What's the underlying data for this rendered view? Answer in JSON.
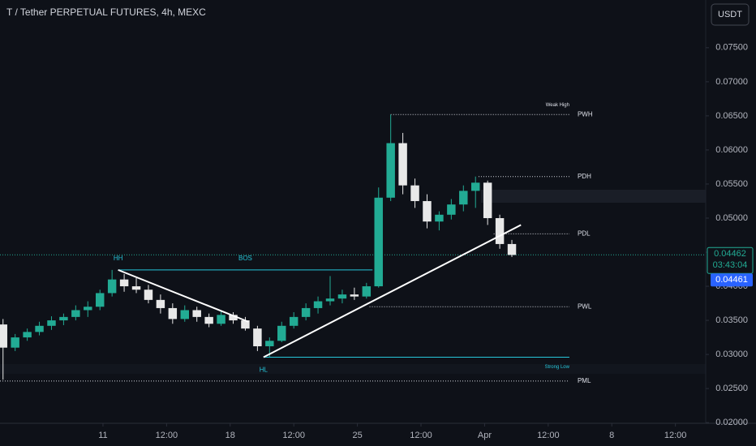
{
  "chart_data": {
    "type": "candlestick",
    "title": "T / Tether PERPETUAL FUTURES, 4h, MEXC",
    "currency": "USDT",
    "up_color": "#22ab94",
    "down_color": "#e8e8e8",
    "xlim": [
      -1,
      232
    ],
    "ylim": [
      0.0199,
      0.082
    ],
    "xticks": [
      {
        "value": 33,
        "label": "11"
      },
      {
        "value": 54,
        "label": "12:00"
      },
      {
        "value": 75,
        "label": "18"
      },
      {
        "value": 96,
        "label": "12:00"
      },
      {
        "value": 117,
        "label": "25"
      },
      {
        "value": 138,
        "label": "12:00"
      },
      {
        "value": 159,
        "label": "Apr"
      },
      {
        "value": 180,
        "label": "12:00"
      },
      {
        "value": 201,
        "label": "8"
      },
      {
        "value": 222,
        "label": "12:00"
      }
    ],
    "yticks": [
      {
        "value": 0.02,
        "label": "0.02000"
      },
      {
        "value": 0.025,
        "label": "0.02500"
      },
      {
        "value": 0.03,
        "label": "0.03000"
      },
      {
        "value": 0.035,
        "label": "0.03500"
      },
      {
        "value": 0.04,
        "label": "0.04000"
      },
      {
        "value": 0.045,
        "label": "0.04500"
      },
      {
        "value": 0.05,
        "label": "0.05000"
      },
      {
        "value": 0.055,
        "label": "0.05500"
      },
      {
        "value": 0.06,
        "label": "0.06000"
      },
      {
        "value": 0.065,
        "label": "0.06500"
      },
      {
        "value": 0.07,
        "label": "0.07000"
      },
      {
        "value": 0.075,
        "label": "0.07500"
      }
    ],
    "x": [
      0,
      4,
      8,
      12,
      16,
      20,
      24,
      28,
      32,
      36,
      40,
      44,
      48,
      52,
      56,
      60,
      64,
      68,
      72,
      76,
      80,
      84,
      88,
      92,
      96,
      100,
      104,
      108,
      112,
      116,
      120,
      124,
      128,
      132,
      136,
      140,
      144,
      148,
      152,
      156,
      160,
      164,
      168
    ],
    "open": [
      0.0344,
      0.031,
      0.0325,
      0.0333,
      0.0342,
      0.035,
      0.0355,
      0.0365,
      0.037,
      0.039,
      0.041,
      0.04,
      0.0395,
      0.038,
      0.0368,
      0.0352,
      0.0365,
      0.0355,
      0.0345,
      0.0358,
      0.035,
      0.0338,
      0.0312,
      0.032,
      0.0342,
      0.0355,
      0.0368,
      0.0378,
      0.0382,
      0.0388,
      0.0385,
      0.04,
      0.053,
      0.061,
      0.0548,
      0.0525,
      0.0495,
      0.0505,
      0.052,
      0.054,
      0.0552,
      0.05,
      0.0462
    ],
    "high": [
      0.0352,
      0.033,
      0.0338,
      0.0348,
      0.0356,
      0.036,
      0.0372,
      0.0378,
      0.0395,
      0.0424,
      0.0418,
      0.0412,
      0.0402,
      0.0388,
      0.0375,
      0.0372,
      0.037,
      0.036,
      0.0365,
      0.0362,
      0.0355,
      0.0342,
      0.0325,
      0.0348,
      0.0362,
      0.0375,
      0.0385,
      0.0415,
      0.0395,
      0.0398,
      0.0405,
      0.0545,
      0.0652,
      0.0625,
      0.0558,
      0.0535,
      0.051,
      0.0528,
      0.0548,
      0.0561,
      0.0555,
      0.0505,
      0.0468
    ],
    "low": [
      0.0263,
      0.0305,
      0.032,
      0.0328,
      0.0336,
      0.0343,
      0.035,
      0.0355,
      0.0365,
      0.0385,
      0.0392,
      0.039,
      0.0375,
      0.036,
      0.0345,
      0.0348,
      0.0348,
      0.034,
      0.0342,
      0.0345,
      0.0335,
      0.0305,
      0.0296,
      0.0318,
      0.0338,
      0.035,
      0.036,
      0.0372,
      0.0375,
      0.038,
      0.0382,
      0.0398,
      0.0525,
      0.0535,
      0.0515,
      0.0485,
      0.0482,
      0.0498,
      0.051,
      0.0515,
      0.049,
      0.0455,
      0.0443
    ],
    "close": [
      0.031,
      0.0325,
      0.0333,
      0.0342,
      0.035,
      0.0355,
      0.0365,
      0.037,
      0.039,
      0.041,
      0.04,
      0.0395,
      0.038,
      0.0368,
      0.0352,
      0.0365,
      0.0355,
      0.0345,
      0.0358,
      0.035,
      0.0338,
      0.0312,
      0.032,
      0.0342,
      0.0355,
      0.0368,
      0.0378,
      0.0382,
      0.0388,
      0.0385,
      0.04,
      0.053,
      0.061,
      0.0548,
      0.0525,
      0.0495,
      0.0505,
      0.052,
      0.054,
      0.0552,
      0.05,
      0.0462,
      0.0446
    ],
    "levels": [
      {
        "label": "PWH",
        "note": "Weak High",
        "value": 0.0652,
        "x": [
          128,
          187
        ]
      },
      {
        "label": "PDH",
        "value": 0.0561,
        "x": [
          157,
          187
        ]
      },
      {
        "label": "PDL",
        "value": 0.0477,
        "x": [
          162,
          187
        ]
      },
      {
        "label": "PWL",
        "value": 0.037,
        "x": [
          121,
          187
        ]
      },
      {
        "label": "PML",
        "value": 0.0261,
        "x": [
          -1,
          187
        ]
      }
    ],
    "structure": [
      {
        "label": "BOS",
        "value": 0.0424,
        "x": [
          38,
          122
        ]
      },
      {
        "label": "Strong Low",
        "value": 0.0296,
        "x": [
          86,
          187
        ]
      }
    ],
    "points": [
      {
        "label": "HH",
        "x": 38,
        "y": 0.0424
      },
      {
        "label": "HL",
        "x": 86,
        "y": 0.0296
      }
    ],
    "trendlines": [
      {
        "x": [
          38,
          81
        ],
        "y": [
          0.0424,
          0.0348
        ]
      },
      {
        "x": [
          86,
          171
        ],
        "y": [
          0.0296,
          0.049
        ]
      }
    ],
    "current_price": {
      "value": 0.04462,
      "label": "0.04462",
      "countdown": "03:43:04"
    },
    "last_price": {
      "value": 0.04461,
      "label": "0.04461"
    }
  }
}
